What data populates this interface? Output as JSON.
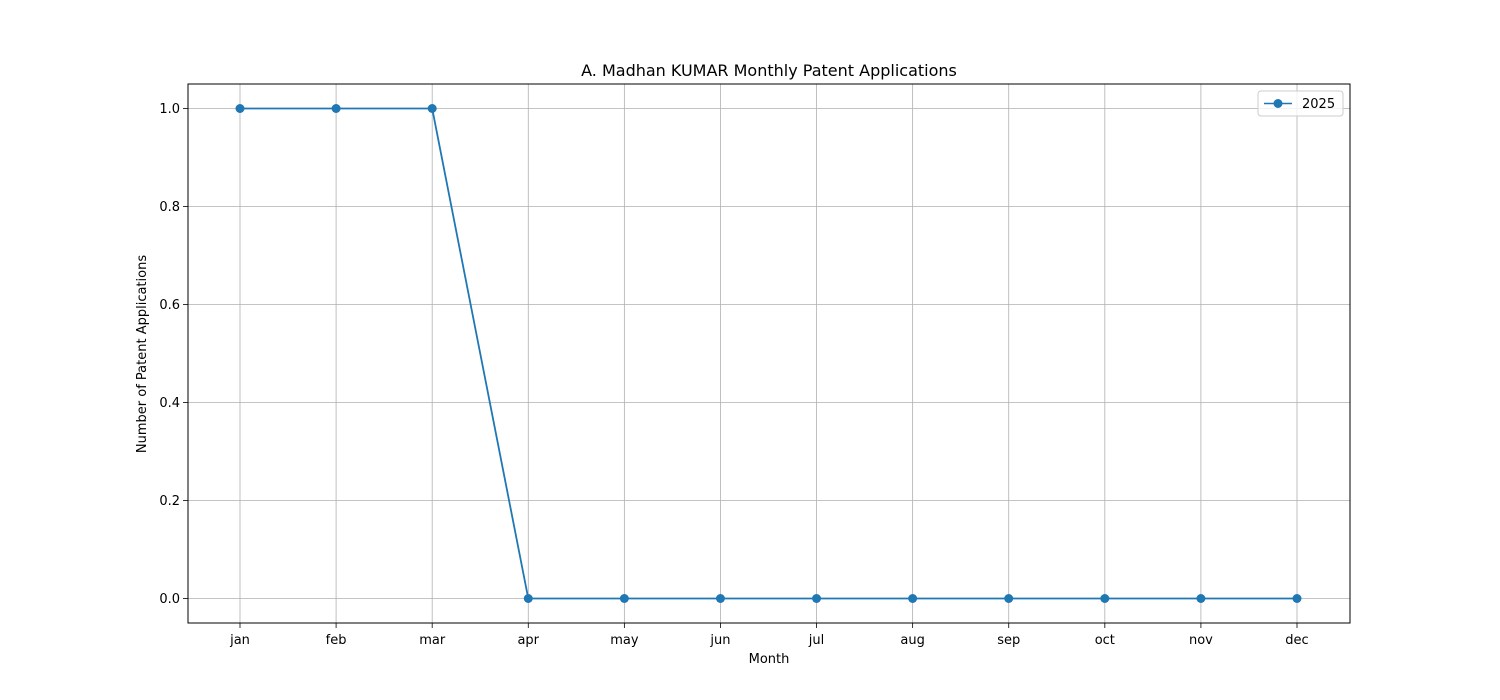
{
  "chart_data": {
    "type": "line",
    "title": "A. Madhan KUMAR Monthly Patent Applications",
    "xlabel": "Month",
    "ylabel": "Number of Patent Applications",
    "categories": [
      "jan",
      "feb",
      "mar",
      "apr",
      "may",
      "jun",
      "jul",
      "aug",
      "sep",
      "oct",
      "nov",
      "dec"
    ],
    "series": [
      {
        "name": "2025",
        "values": [
          1,
          1,
          1,
          0,
          0,
          0,
          0,
          0,
          0,
          0,
          0,
          0
        ],
        "color": "#1f77b4",
        "marker": "circle"
      }
    ],
    "ylim": [
      -0.05,
      1.05
    ],
    "yticks": [
      0.0,
      0.2,
      0.4,
      0.6,
      0.8,
      1.0
    ],
    "ytick_labels": [
      "0.0",
      "0.2",
      "0.4",
      "0.6",
      "0.8",
      "1.0"
    ],
    "grid": true,
    "legend_position": "upper right"
  }
}
